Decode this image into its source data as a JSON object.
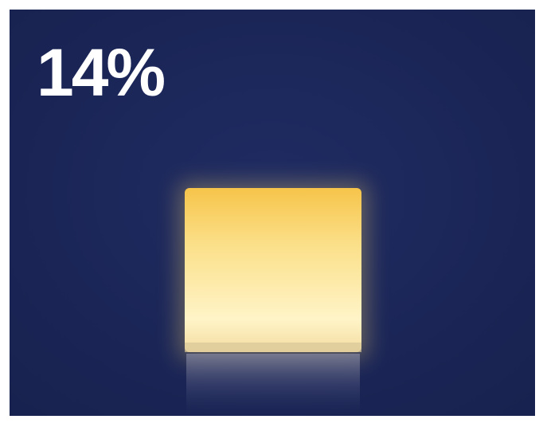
{
  "headline": "14%"
}
